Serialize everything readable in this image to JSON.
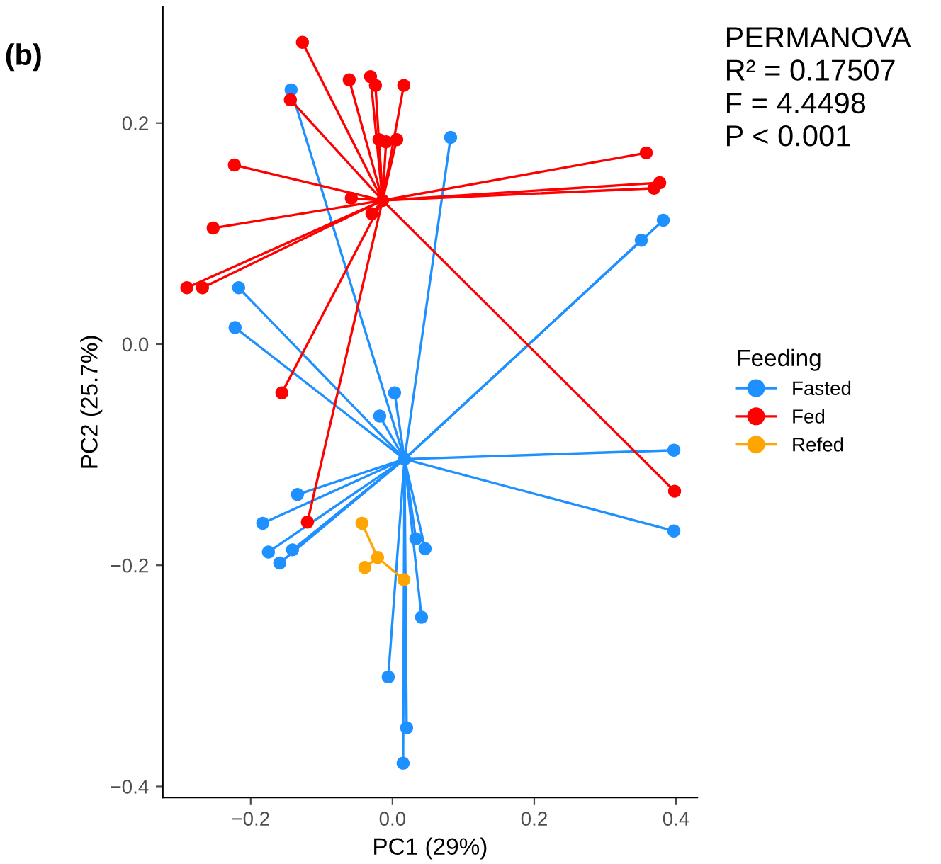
{
  "chart_data": {
    "type": "scatter",
    "xlabel": "PC1 (29%)",
    "ylabel": "PC2 (25.7%)",
    "legend_title": "Feeding",
    "legend": "right",
    "grid": false,
    "marker": "circle",
    "xlim": [
      -0.324,
      0.43
    ],
    "ylim": [
      -0.41,
      0.305
    ],
    "xticks": [
      {
        "value": -0.2,
        "label": "−0.2"
      },
      {
        "value": 0.0,
        "label": "0.0"
      },
      0.2,
      0.4
    ],
    "yticks": [
      {
        "value": -0.4,
        "label": "−0.4"
      },
      {
        "value": -0.2,
        "label": "−0.2"
      },
      {
        "value": 0.0,
        "label": "0.0"
      },
      0.2
    ],
    "annotations": [
      "(b)",
      "PERMANOVA",
      "R² = 0.17507",
      "F = 4.4498",
      "P < 0.001"
    ],
    "series": [
      {
        "name": "Fasted",
        "color": "#1e90ff",
        "x": [
          -0.143,
          0.082,
          0.382,
          0.351,
          -0.217,
          -0.222,
          0.003,
          -0.018,
          0.397,
          -0.134,
          0.397,
          -0.183,
          -0.175,
          -0.141,
          -0.159,
          0.033,
          0.046,
          0.041,
          -0.006,
          0.02,
          0.015
        ],
        "values": [
          0.23,
          0.187,
          0.112,
          0.094,
          0.051,
          0.015,
          -0.044,
          -0.065,
          -0.096,
          -0.136,
          -0.169,
          -0.162,
          -0.188,
          -0.186,
          -0.198,
          -0.176,
          -0.185,
          -0.247,
          -0.301,
          -0.347,
          -0.379
        ]
      },
      {
        "name": "Fed",
        "color": "#ff0000",
        "x": [
          -0.127,
          -0.061,
          -0.031,
          -0.024,
          0.016,
          -0.144,
          -0.019,
          -0.009,
          0.006,
          -0.223,
          -0.058,
          -0.029,
          -0.253,
          0.358,
          0.377,
          0.369,
          -0.29,
          -0.268,
          -0.156,
          0.398,
          -0.12
        ],
        "values": [
          0.273,
          0.239,
          0.242,
          0.234,
          0.234,
          0.221,
          0.185,
          0.183,
          0.185,
          0.162,
          0.132,
          0.118,
          0.105,
          0.173,
          0.146,
          0.141,
          0.051,
          0.051,
          -0.044,
          -0.133,
          -0.161
        ]
      },
      {
        "name": "Refed",
        "color": "#ffa500",
        "x": [
          -0.043,
          -0.039,
          0.016
        ],
        "values": [
          -0.162,
          -0.202,
          -0.213
        ]
      },
      {
        "color": "#1e90ff",
        "x": [
          0.017
        ],
        "values": [
          -0.104
        ]
      },
      {
        "color": "#ff0000",
        "x": [
          -0.014
        ],
        "values": [
          0.13
        ]
      },
      {
        "color": "#ffa500",
        "x": [
          -0.021
        ],
        "values": [
          -0.193
        ]
      },
      {
        "type": "line",
        "color": "#1e90ff",
        "marker": "none",
        "x": [
          0.017,
          -0.143
        ],
        "values": [
          -0.104,
          0.23
        ]
      },
      {
        "type": "line",
        "color": "#1e90ff",
        "marker": "none",
        "x": [
          0.017,
          0.082
        ],
        "values": [
          -0.104,
          0.187
        ]
      },
      {
        "type": "line",
        "color": "#1e90ff",
        "marker": "none",
        "x": [
          0.017,
          0.382
        ],
        "values": [
          -0.104,
          0.112
        ]
      },
      {
        "type": "line",
        "color": "#1e90ff",
        "marker": "none",
        "x": [
          0.017,
          0.351
        ],
        "values": [
          -0.104,
          0.094
        ]
      },
      {
        "type": "line",
        "color": "#1e90ff",
        "marker": "none",
        "x": [
          0.017,
          -0.217
        ],
        "values": [
          -0.104,
          0.051
        ]
      },
      {
        "type": "line",
        "color": "#1e90ff",
        "marker": "none",
        "x": [
          0.017,
          -0.222
        ],
        "values": [
          -0.104,
          0.015
        ]
      },
      {
        "type": "line",
        "color": "#1e90ff",
        "marker": "none",
        "x": [
          0.017,
          0.003
        ],
        "values": [
          -0.104,
          -0.044
        ]
      },
      {
        "type": "line",
        "color": "#1e90ff",
        "marker": "none",
        "x": [
          0.017,
          -0.018
        ],
        "values": [
          -0.104,
          -0.065
        ]
      },
      {
        "type": "line",
        "color": "#1e90ff",
        "marker": "none",
        "x": [
          0.017,
          0.397
        ],
        "values": [
          -0.104,
          -0.096
        ]
      },
      {
        "type": "line",
        "color": "#1e90ff",
        "marker": "none",
        "x": [
          0.017,
          -0.134
        ],
        "values": [
          -0.104,
          -0.136
        ]
      },
      {
        "type": "line",
        "color": "#1e90ff",
        "marker": "none",
        "x": [
          0.017,
          0.397
        ],
        "values": [
          -0.104,
          -0.169
        ]
      },
      {
        "type": "line",
        "color": "#1e90ff",
        "marker": "none",
        "x": [
          0.017,
          -0.183
        ],
        "values": [
          -0.104,
          -0.162
        ]
      },
      {
        "type": "line",
        "color": "#1e90ff",
        "marker": "none",
        "x": [
          0.017,
          -0.175
        ],
        "values": [
          -0.104,
          -0.188
        ]
      },
      {
        "type": "line",
        "color": "#1e90ff",
        "marker": "none",
        "x": [
          0.017,
          -0.141
        ],
        "values": [
          -0.104,
          -0.186
        ]
      },
      {
        "type": "line",
        "color": "#1e90ff",
        "marker": "none",
        "x": [
          0.017,
          -0.159
        ],
        "values": [
          -0.104,
          -0.198
        ]
      },
      {
        "type": "line",
        "color": "#1e90ff",
        "marker": "none",
        "x": [
          0.017,
          0.033
        ],
        "values": [
          -0.104,
          -0.176
        ]
      },
      {
        "type": "line",
        "color": "#1e90ff",
        "marker": "none",
        "x": [
          0.017,
          0.046
        ],
        "values": [
          -0.104,
          -0.185
        ]
      },
      {
        "type": "line",
        "color": "#1e90ff",
        "marker": "none",
        "x": [
          0.017,
          0.041
        ],
        "values": [
          -0.104,
          -0.247
        ]
      },
      {
        "type": "line",
        "color": "#1e90ff",
        "marker": "none",
        "x": [
          0.017,
          -0.006
        ],
        "values": [
          -0.104,
          -0.301
        ]
      },
      {
        "type": "line",
        "color": "#1e90ff",
        "marker": "none",
        "x": [
          0.017,
          0.02
        ],
        "values": [
          -0.104,
          -0.347
        ]
      },
      {
        "type": "line",
        "color": "#1e90ff",
        "marker": "none",
        "x": [
          0.017,
          0.015
        ],
        "values": [
          -0.104,
          -0.379
        ]
      },
      {
        "type": "line",
        "color": "#ff0000",
        "marker": "none",
        "x": [
          -0.014,
          -0.127
        ],
        "values": [
          0.13,
          0.273
        ]
      },
      {
        "type": "line",
        "color": "#ff0000",
        "marker": "none",
        "x": [
          -0.014,
          -0.061
        ],
        "values": [
          0.13,
          0.239
        ]
      },
      {
        "type": "line",
        "color": "#ff0000",
        "marker": "none",
        "x": [
          -0.014,
          -0.031
        ],
        "values": [
          0.13,
          0.242
        ]
      },
      {
        "type": "line",
        "color": "#ff0000",
        "marker": "none",
        "x": [
          -0.014,
          -0.024
        ],
        "values": [
          0.13,
          0.234
        ]
      },
      {
        "type": "line",
        "color": "#ff0000",
        "marker": "none",
        "x": [
          -0.014,
          0.016
        ],
        "values": [
          0.13,
          0.234
        ]
      },
      {
        "type": "line",
        "color": "#ff0000",
        "marker": "none",
        "x": [
          -0.014,
          -0.144
        ],
        "values": [
          0.13,
          0.221
        ]
      },
      {
        "type": "line",
        "color": "#ff0000",
        "marker": "none",
        "x": [
          -0.014,
          -0.019
        ],
        "values": [
          0.13,
          0.185
        ]
      },
      {
        "type": "line",
        "color": "#ff0000",
        "marker": "none",
        "x": [
          -0.014,
          -0.009
        ],
        "values": [
          0.13,
          0.183
        ]
      },
      {
        "type": "line",
        "color": "#ff0000",
        "marker": "none",
        "x": [
          -0.014,
          0.006
        ],
        "values": [
          0.13,
          0.185
        ]
      },
      {
        "type": "line",
        "color": "#ff0000",
        "marker": "none",
        "x": [
          -0.014,
          -0.223
        ],
        "values": [
          0.13,
          0.162
        ]
      },
      {
        "type": "line",
        "color": "#ff0000",
        "marker": "none",
        "x": [
          -0.014,
          -0.058
        ],
        "values": [
          0.13,
          0.132
        ]
      },
      {
        "type": "line",
        "color": "#ff0000",
        "marker": "none",
        "x": [
          -0.014,
          -0.029
        ],
        "values": [
          0.13,
          0.118
        ]
      },
      {
        "type": "line",
        "color": "#ff0000",
        "marker": "none",
        "x": [
          -0.014,
          -0.253
        ],
        "values": [
          0.13,
          0.105
        ]
      },
      {
        "type": "line",
        "color": "#ff0000",
        "marker": "none",
        "x": [
          -0.014,
          0.358
        ],
        "values": [
          0.13,
          0.173
        ]
      },
      {
        "type": "line",
        "color": "#ff0000",
        "marker": "none",
        "x": [
          -0.014,
          0.377
        ],
        "values": [
          0.13,
          0.146
        ]
      },
      {
        "type": "line",
        "color": "#ff0000",
        "marker": "none",
        "x": [
          -0.014,
          0.369
        ],
        "values": [
          0.13,
          0.141
        ]
      },
      {
        "type": "line",
        "color": "#ff0000",
        "marker": "none",
        "x": [
          -0.014,
          -0.29
        ],
        "values": [
          0.13,
          0.051
        ]
      },
      {
        "type": "line",
        "color": "#ff0000",
        "marker": "none",
        "x": [
          -0.014,
          -0.268
        ],
        "values": [
          0.13,
          0.051
        ]
      },
      {
        "type": "line",
        "color": "#ff0000",
        "marker": "none",
        "x": [
          -0.014,
          -0.156
        ],
        "values": [
          0.13,
          -0.044
        ]
      },
      {
        "type": "line",
        "color": "#ff0000",
        "marker": "none",
        "x": [
          -0.014,
          0.398
        ],
        "values": [
          0.13,
          -0.133
        ]
      },
      {
        "type": "line",
        "color": "#ff0000",
        "marker": "none",
        "x": [
          -0.014,
          -0.12
        ],
        "values": [
          0.13,
          -0.161
        ]
      },
      {
        "type": "line",
        "color": "#ffa500",
        "marker": "none",
        "x": [
          -0.021,
          -0.043
        ],
        "values": [
          -0.193,
          -0.162
        ]
      },
      {
        "type": "line",
        "color": "#ffa500",
        "marker": "none",
        "x": [
          -0.021,
          -0.039
        ],
        "values": [
          -0.193,
          -0.202
        ]
      },
      {
        "type": "line",
        "color": "#ffa500",
        "marker": "none",
        "x": [
          -0.021,
          0.016
        ],
        "values": [
          -0.193,
          -0.213
        ]
      }
    ]
  }
}
